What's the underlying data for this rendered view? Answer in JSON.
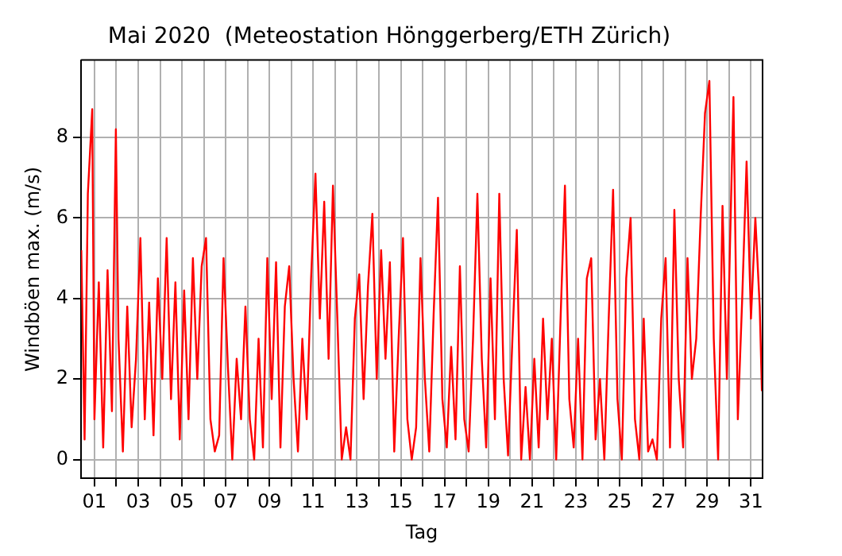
{
  "chart_data": {
    "type": "line",
    "title": "Mai 2020  (Meteostation Hönggerberg/ETH Zürich)",
    "xlabel": "Tag",
    "ylabel": "Windböen max. (m/s)",
    "xlim": [
      0.39,
      31.53
    ],
    "ylim": [
      -0.47,
      9.92
    ],
    "yticks": [
      0,
      2,
      4,
      6,
      8
    ],
    "xticks": [
      {
        "value": 1,
        "label": "01"
      },
      {
        "value": 2,
        "label": null
      },
      {
        "value": 3,
        "label": "03"
      },
      {
        "value": 4,
        "label": null
      },
      {
        "value": 5,
        "label": "05"
      },
      {
        "value": 6,
        "label": null
      },
      {
        "value": 7,
        "label": "07"
      },
      {
        "value": 8,
        "label": null
      },
      {
        "value": 9,
        "label": "09"
      },
      {
        "value": 10,
        "label": null
      },
      {
        "value": 11,
        "label": "11"
      },
      {
        "value": 12,
        "label": null
      },
      {
        "value": 13,
        "label": "13"
      },
      {
        "value": 14,
        "label": null
      },
      {
        "value": 15,
        "label": "15"
      },
      {
        "value": 16,
        "label": null
      },
      {
        "value": 17,
        "label": "17"
      },
      {
        "value": 18,
        "label": null
      },
      {
        "value": 19,
        "label": "19"
      },
      {
        "value": 20,
        "label": null
      },
      {
        "value": 21,
        "label": "21"
      },
      {
        "value": 22,
        "label": null
      },
      {
        "value": 23,
        "label": "23"
      },
      {
        "value": 24,
        "label": null
      },
      {
        "value": 25,
        "label": "25"
      },
      {
        "value": 26,
        "label": null
      },
      {
        "value": 27,
        "label": "27"
      },
      {
        "value": 28,
        "label": null
      },
      {
        "value": 29,
        "label": "29"
      },
      {
        "value": 30,
        "label": null
      },
      {
        "value": 31,
        "label": "31"
      }
    ],
    "grid": true,
    "legend": false,
    "marker": "none",
    "line_style": "solid",
    "x": [
      0.4,
      0.55,
      0.7,
      0.9,
      1.0,
      1.2,
      1.4,
      1.6,
      1.8,
      1.98,
      2.1,
      2.3,
      2.5,
      2.7,
      2.9,
      3.1,
      3.3,
      3.5,
      3.7,
      3.9,
      4.1,
      4.3,
      4.5,
      4.7,
      4.9,
      5.1,
      5.3,
      5.5,
      5.7,
      5.9,
      6.1,
      6.3,
      6.5,
      6.7,
      6.9,
      7.1,
      7.3,
      7.5,
      7.7,
      7.9,
      8.1,
      8.3,
      8.5,
      8.7,
      8.9,
      9.1,
      9.3,
      9.5,
      9.7,
      9.9,
      10.1,
      10.3,
      10.5,
      10.7,
      10.9,
      11.1,
      11.3,
      11.5,
      11.7,
      11.9,
      12.1,
      12.3,
      12.5,
      12.7,
      12.9,
      13.1,
      13.3,
      13.5,
      13.7,
      13.9,
      14.1,
      14.3,
      14.5,
      14.7,
      14.9,
      15.1,
      15.3,
      15.5,
      15.7,
      15.9,
      16.1,
      16.3,
      16.5,
      16.7,
      16.9,
      17.1,
      17.3,
      17.5,
      17.7,
      17.9,
      18.1,
      18.3,
      18.5,
      18.7,
      18.9,
      19.1,
      19.3,
      19.5,
      19.7,
      19.9,
      20.1,
      20.3,
      20.5,
      20.7,
      20.9,
      21.1,
      21.3,
      21.5,
      21.7,
      21.9,
      22.1,
      22.3,
      22.5,
      22.7,
      22.9,
      23.1,
      23.3,
      23.5,
      23.7,
      23.9,
      24.1,
      24.3,
      24.5,
      24.7,
      24.9,
      25.1,
      25.3,
      25.5,
      25.7,
      25.9,
      26.1,
      26.3,
      26.5,
      26.7,
      26.9,
      27.1,
      27.3,
      27.5,
      27.7,
      27.9,
      28.1,
      28.3,
      28.5,
      28.7,
      28.9,
      29.1,
      29.3,
      29.5,
      29.7,
      29.9,
      30.2,
      30.4,
      30.6,
      30.8,
      31.0,
      31.2,
      31.4,
      31.5
    ],
    "series": [
      {
        "color": "#ff0000",
        "values": [
          5.2,
          0.5,
          6.6,
          8.7,
          1.0,
          4.4,
          0.3,
          4.7,
          1.2,
          8.2,
          3.0,
          0.2,
          3.8,
          0.8,
          2.5,
          5.5,
          1.0,
          3.9,
          0.6,
          4.5,
          2.0,
          5.5,
          1.5,
          4.4,
          0.5,
          4.2,
          1.0,
          5.0,
          2.0,
          4.8,
          5.5,
          1.0,
          0.2,
          0.6,
          5.0,
          2.3,
          0.0,
          2.5,
          1.0,
          3.8,
          1.0,
          0.0,
          3.0,
          0.3,
          5.0,
          1.5,
          4.9,
          0.3,
          3.8,
          4.8,
          2.0,
          0.2,
          3.0,
          1.0,
          4.5,
          7.1,
          3.5,
          6.4,
          2.5,
          6.8,
          3.5,
          0.0,
          0.8,
          0.0,
          3.5,
          4.6,
          1.5,
          4.3,
          6.1,
          2.0,
          5.2,
          2.5,
          4.9,
          0.2,
          3.0,
          5.5,
          1.0,
          0.0,
          0.8,
          5.0,
          2.0,
          0.2,
          3.6,
          6.5,
          1.5,
          0.3,
          2.8,
          0.5,
          4.8,
          1.0,
          0.2,
          3.0,
          6.6,
          2.5,
          0.3,
          4.5,
          1.0,
          6.6,
          2.0,
          0.1,
          3.0,
          5.7,
          0.0,
          1.8,
          0.0,
          2.5,
          0.3,
          3.5,
          1.0,
          3.0,
          0.0,
          3.5,
          6.8,
          1.5,
          0.3,
          3.0,
          0.0,
          4.5,
          5.0,
          0.5,
          2.0,
          0.0,
          3.5,
          6.7,
          1.5,
          0.0,
          4.5,
          6.0,
          1.0,
          0.0,
          3.5,
          0.2,
          0.5,
          0.0,
          3.5,
          5.0,
          0.3,
          6.2,
          2.0,
          0.3,
          5.0,
          2.0,
          3.0,
          6.0,
          8.6,
          9.4,
          3.0,
          0.0,
          6.3,
          2.0,
          9.0,
          1.0,
          4.0,
          7.4,
          3.5,
          6.0,
          3.8,
          1.7
        ]
      }
    ]
  }
}
